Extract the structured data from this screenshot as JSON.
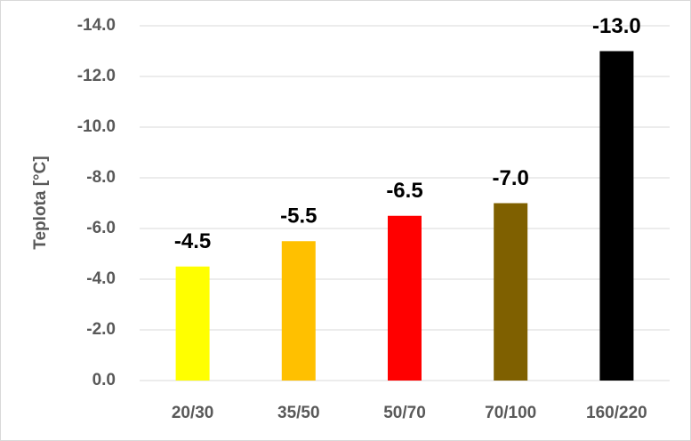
{
  "chart_data": {
    "type": "bar",
    "y_label": "Teplota [°C]",
    "categories": [
      "20/30",
      "35/50",
      "50/70",
      "70/100",
      "160/220"
    ],
    "values": [
      -4.5,
      -5.5,
      -6.5,
      -7.0,
      -13.0
    ],
    "value_labels": [
      "-4.5",
      "-5.5",
      "-6.5",
      "-7.0",
      "-13.0"
    ],
    "colors": [
      "#ffff00",
      "#ffc000",
      "#ff0000",
      "#7f6000",
      "#000000"
    ],
    "ylim": [
      0,
      -14
    ],
    "yticks": [
      {
        "value": 0,
        "label": "0.0"
      },
      {
        "value": -2,
        "label": "-2.0"
      },
      {
        "value": -4,
        "label": "-4.0"
      },
      {
        "value": -6,
        "label": "-6.0"
      },
      {
        "value": -8,
        "label": "-8.0"
      },
      {
        "value": -10,
        "label": "-10.0"
      },
      {
        "value": -12,
        "label": "-12.0"
      },
      {
        "value": -14,
        "label": "-14.0"
      }
    ],
    "grid": true
  }
}
